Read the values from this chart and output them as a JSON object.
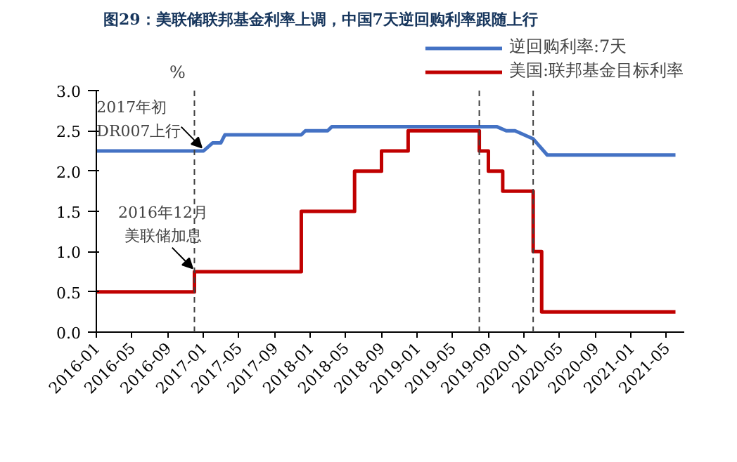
{
  "chart_data": {
    "type": "line",
    "title": "图29：美联储联邦基金利率上调，中国7天逆回购利率跟随上行",
    "ylabel": "%",
    "xlim": [
      "2016-01",
      "2021-07"
    ],
    "ylim": [
      0,
      3.0
    ],
    "xticks": [
      "2016-01",
      "2016-05",
      "2016-09",
      "2017-01",
      "2017-05",
      "2017-09",
      "2018-01",
      "2018-05",
      "2018-09",
      "2019-01",
      "2019-05",
      "2019-09",
      "2020-01",
      "2020-05",
      "2020-09",
      "2021-01",
      "2021-05"
    ],
    "yticks": [
      {
        "value": 0,
        "label": "0.0"
      },
      {
        "value": 0.5,
        "label": "0.5"
      },
      {
        "value": 1,
        "label": "1.0"
      },
      {
        "value": 1.5,
        "label": "1.5"
      },
      {
        "value": 2,
        "label": "2.0"
      },
      {
        "value": 2.5,
        "label": "2.5"
      },
      {
        "value": 3,
        "label": "3.0"
      }
    ],
    "series": [
      {
        "name": "逆回购利率:7天",
        "color": "#4472c4",
        "x": [
          "2016-01",
          "2017-01",
          "2017-02",
          "2017-03",
          "2017-03-15",
          "2017-12",
          "2017-12-15",
          "2018-03",
          "2018-03-15",
          "2019-10",
          "2019-11",
          "2019-12",
          "2020-02",
          "2020-03-20",
          "2021-06"
        ],
        "values": [
          2.25,
          2.25,
          2.35,
          2.35,
          2.45,
          2.45,
          2.5,
          2.5,
          2.55,
          2.55,
          2.5,
          2.5,
          2.4,
          2.2,
          2.2
        ]
      },
      {
        "name": "美国:联邦基金目标利率",
        "color": "#c00000",
        "type": "step",
        "x": [
          "2016-01",
          "2016-12",
          "2017-12",
          "2018-06",
          "2018-09",
          "2018-12",
          "2019-08",
          "2019-09",
          "2019-10-20",
          "2020-02",
          "2020-03",
          "2021-06"
        ],
        "values": [
          0.5,
          0.75,
          1.5,
          2.0,
          2.25,
          2.5,
          2.25,
          2.0,
          1.75,
          1.0,
          0.25,
          0.25
        ]
      }
    ],
    "ref_lines": [
      {
        "axis": "x",
        "value": "2016-12",
        "color": "#404040",
        "line_style": "dashed"
      },
      {
        "axis": "x",
        "value": "2019-08",
        "color": "#404040",
        "line_style": "dashed"
      },
      {
        "axis": "x",
        "value": "2020-02",
        "color": "#404040",
        "line_style": "dashed"
      }
    ],
    "annotations": [
      {
        "text": "2017年初DR007上行",
        "x": "2017-01",
        "y": 2.25
      },
      {
        "text": "2016年12月美联储加息",
        "x": "2016-12",
        "y": 0.75
      }
    ],
    "grid": false,
    "legend": "top right",
    "line_style": "solid",
    "marker": "none"
  }
}
